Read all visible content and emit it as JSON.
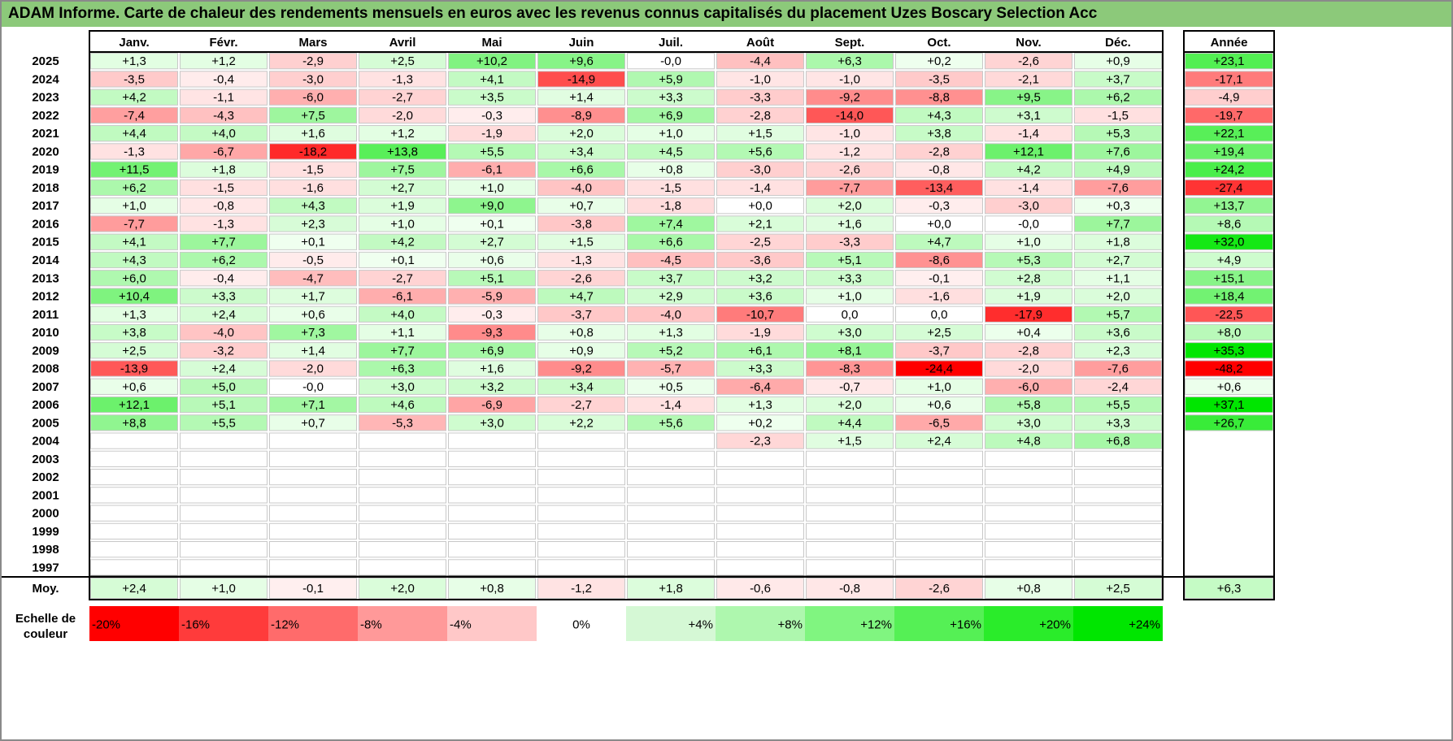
{
  "chart_data": {
    "type": "heatmap",
    "title": "ADAM Informe. Carte de chaleur des rendements mensuels en euros avec les revenus connus capitalisés du placement Uzes Boscary Selection Acc",
    "columns": [
      "Janv.",
      "Févr.",
      "Mars",
      "Avril",
      "Mai",
      "Juin",
      "Juil.",
      "Août",
      "Sept.",
      "Oct.",
      "Nov.",
      "Déc."
    ],
    "year_column": "Année",
    "rows": [
      {
        "year": "2025",
        "values": [
          "+1,3",
          "+1,2",
          "-2,9",
          "+2,5",
          "+10,2",
          "+9,6",
          "-0,0",
          "-4,4",
          "+6,3",
          "+0,2",
          "-2,6",
          "+0,9"
        ],
        "annual": "+23,1"
      },
      {
        "year": "2024",
        "values": [
          "-3,5",
          "-0,4",
          "-3,0",
          "-1,3",
          "+4,1",
          "-14,9",
          "+5,9",
          "-1,0",
          "-1,0",
          "-3,5",
          "-2,1",
          "+3,7"
        ],
        "annual": "-17,1"
      },
      {
        "year": "2023",
        "values": [
          "+4,2",
          "-1,1",
          "-6,0",
          "-2,7",
          "+3,5",
          "+1,4",
          "+3,3",
          "-3,3",
          "-9,2",
          "-8,8",
          "+9,5",
          "+6,2"
        ],
        "annual": "-4,9"
      },
      {
        "year": "2022",
        "values": [
          "-7,4",
          "-4,3",
          "+7,5",
          "-2,0",
          "-0,3",
          "-8,9",
          "+6,9",
          "-2,8",
          "-14,0",
          "+4,3",
          "+3,1",
          "-1,5"
        ],
        "annual": "-19,7"
      },
      {
        "year": "2021",
        "values": [
          "+4,4",
          "+4,0",
          "+1,6",
          "+1,2",
          "-1,9",
          "+2,0",
          "+1,0",
          "+1,5",
          "-1,0",
          "+3,8",
          "-1,4",
          "+5,3"
        ],
        "annual": "+22,1"
      },
      {
        "year": "2020",
        "values": [
          "-1,3",
          "-6,7",
          "-18,2",
          "+13,8",
          "+5,5",
          "+3,4",
          "+4,5",
          "+5,6",
          "-1,2",
          "-2,8",
          "+12,1",
          "+7,6"
        ],
        "annual": "+19,4"
      },
      {
        "year": "2019",
        "values": [
          "+11,5",
          "+1,8",
          "-1,5",
          "+7,5",
          "-6,1",
          "+6,6",
          "+0,8",
          "-3,0",
          "-2,6",
          "-0,8",
          "+4,2",
          "+4,9"
        ],
        "annual": "+24,2"
      },
      {
        "year": "2018",
        "values": [
          "+6,2",
          "-1,5",
          "-1,6",
          "+2,7",
          "+1,0",
          "-4,0",
          "-1,5",
          "-1,4",
          "-7,7",
          "-13,4",
          "-1,4",
          "-7,6"
        ],
        "annual": "-27,4"
      },
      {
        "year": "2017",
        "values": [
          "+1,0",
          "-0,8",
          "+4,3",
          "+1,9",
          "+9,0",
          "+0,7",
          "-1,8",
          "+0,0",
          "+2,0",
          "-0,3",
          "-3,0",
          "+0,3"
        ],
        "annual": "+13,7"
      },
      {
        "year": "2016",
        "values": [
          "-7,7",
          "-1,3",
          "+2,3",
          "+1,0",
          "+0,1",
          "-3,8",
          "+7,4",
          "+2,1",
          "+1,6",
          "+0,0",
          "-0,0",
          "+7,7"
        ],
        "annual": "+8,6"
      },
      {
        "year": "2015",
        "values": [
          "+4,1",
          "+7,7",
          "+0,1",
          "+4,2",
          "+2,7",
          "+1,5",
          "+6,6",
          "-2,5",
          "-3,3",
          "+4,7",
          "+1,0",
          "+1,8"
        ],
        "annual": "+32,0"
      },
      {
        "year": "2014",
        "values": [
          "+4,3",
          "+6,2",
          "-0,5",
          "+0,1",
          "+0,6",
          "-1,3",
          "-4,5",
          "-3,6",
          "+5,1",
          "-8,6",
          "+5,3",
          "+2,7"
        ],
        "annual": "+4,9"
      },
      {
        "year": "2013",
        "values": [
          "+6,0",
          "-0,4",
          "-4,7",
          "-2,7",
          "+5,1",
          "-2,6",
          "+3,7",
          "+3,2",
          "+3,3",
          "-0,1",
          "+2,8",
          "+1,1"
        ],
        "annual": "+15,1"
      },
      {
        "year": "2012",
        "values": [
          "+10,4",
          "+3,3",
          "+1,7",
          "-6,1",
          "-5,9",
          "+4,7",
          "+2,9",
          "+3,6",
          "+1,0",
          "-1,6",
          "+1,9",
          "+2,0"
        ],
        "annual": "+18,4"
      },
      {
        "year": "2011",
        "values": [
          "+1,3",
          "+2,4",
          "+0,6",
          "+4,0",
          "-0,3",
          "-3,7",
          "-4,0",
          "-10,7",
          "0,0",
          "0,0",
          "-17,9",
          "+5,7"
        ],
        "annual": "-22,5"
      },
      {
        "year": "2010",
        "values": [
          "+3,8",
          "-4,0",
          "+7,3",
          "+1,1",
          "-9,3",
          "+0,8",
          "+1,3",
          "-1,9",
          "+3,0",
          "+2,5",
          "+0,4",
          "+3,6"
        ],
        "annual": "+8,0"
      },
      {
        "year": "2009",
        "values": [
          "+2,5",
          "-3,2",
          "+1,4",
          "+7,7",
          "+6,9",
          "+0,9",
          "+5,2",
          "+6,1",
          "+8,1",
          "-3,7",
          "-2,8",
          "+2,3"
        ],
        "annual": "+35,3"
      },
      {
        "year": "2008",
        "values": [
          "-13,9",
          "+2,4",
          "-2,0",
          "+6,3",
          "+1,6",
          "-9,2",
          "-5,7",
          "+3,3",
          "-8,3",
          "-24,4",
          "-2,0",
          "-7,6"
        ],
        "annual": "-48,2"
      },
      {
        "year": "2007",
        "values": [
          "+0,6",
          "+5,0",
          "-0,0",
          "+3,0",
          "+3,2",
          "+3,4",
          "+0,5",
          "-6,4",
          "-0,7",
          "+1,0",
          "-6,0",
          "-2,4"
        ],
        "annual": "+0,6"
      },
      {
        "year": "2006",
        "values": [
          "+12,1",
          "+5,1",
          "+7,1",
          "+4,6",
          "-6,9",
          "-2,7",
          "-1,4",
          "+1,3",
          "+2,0",
          "+0,6",
          "+5,8",
          "+5,5"
        ],
        "annual": "+37,1"
      },
      {
        "year": "2005",
        "values": [
          "+8,8",
          "+5,5",
          "+0,7",
          "-5,3",
          "+3,0",
          "+2,2",
          "+5,6",
          "+0,2",
          "+4,4",
          "-6,5",
          "+3,0",
          "+3,3"
        ],
        "annual": "+26,7"
      },
      {
        "year": "2004",
        "values": [
          "",
          "",
          "",
          "",
          "",
          "",
          "",
          "-2,3",
          "+1,5",
          "+2,4",
          "+4,8",
          "+6,8"
        ],
        "annual": ""
      },
      {
        "year": "2003",
        "values": [
          "",
          "",
          "",
          "",
          "",
          "",
          "",
          "",
          "",
          "",
          "",
          ""
        ],
        "annual": ""
      },
      {
        "year": "2002",
        "values": [
          "",
          "",
          "",
          "",
          "",
          "",
          "",
          "",
          "",
          "",
          "",
          ""
        ],
        "annual": ""
      },
      {
        "year": "2001",
        "values": [
          "",
          "",
          "",
          "",
          "",
          "",
          "",
          "",
          "",
          "",
          "",
          ""
        ],
        "annual": ""
      },
      {
        "year": "2000",
        "values": [
          "",
          "",
          "",
          "",
          "",
          "",
          "",
          "",
          "",
          "",
          "",
          ""
        ],
        "annual": ""
      },
      {
        "year": "1999",
        "values": [
          "",
          "",
          "",
          "",
          "",
          "",
          "",
          "",
          "",
          "",
          "",
          ""
        ],
        "annual": ""
      },
      {
        "year": "1998",
        "values": [
          "",
          "",
          "",
          "",
          "",
          "",
          "",
          "",
          "",
          "",
          "",
          ""
        ],
        "annual": ""
      },
      {
        "year": "1997",
        "values": [
          "",
          "",
          "",
          "",
          "",
          "",
          "",
          "",
          "",
          "",
          "",
          ""
        ],
        "annual": ""
      }
    ],
    "average": {
      "label": "Moy.",
      "values": [
        "+2,4",
        "+1,0",
        "-0,1",
        "+2,0",
        "+0,8",
        "-1,2",
        "+1,8",
        "-0,6",
        "-0,8",
        "-2,6",
        "+0,8",
        "+2,5"
      ],
      "annual": "+6,3"
    },
    "scale": {
      "label_line1": "Echelle de",
      "label_line2": "couleur",
      "steps": [
        {
          "label": "-20%",
          "color": "#ff0000"
        },
        {
          "label": "-16%",
          "color": "#ff3b3b"
        },
        {
          "label": "-12%",
          "color": "#ff6b6b"
        },
        {
          "label": "-8%",
          "color": "#ff9999"
        },
        {
          "label": "-4%",
          "color": "#ffc8c8"
        },
        {
          "label": "0%",
          "color": "#ffffff"
        },
        {
          "label": "+4%",
          "color": "#d5f8d5"
        },
        {
          "label": "+8%",
          "color": "#aef7ae"
        },
        {
          "label": "+12%",
          "color": "#80f580"
        },
        {
          "label": "+16%",
          "color": "#55f055"
        },
        {
          "label": "+20%",
          "color": "#2aec2a"
        },
        {
          "label": "+24%",
          "color": "#00e600"
        }
      ]
    },
    "colors": {
      "title_bar": "#8cc97a",
      "grid_line": "#c0c0c0",
      "frame": "#000000"
    }
  }
}
